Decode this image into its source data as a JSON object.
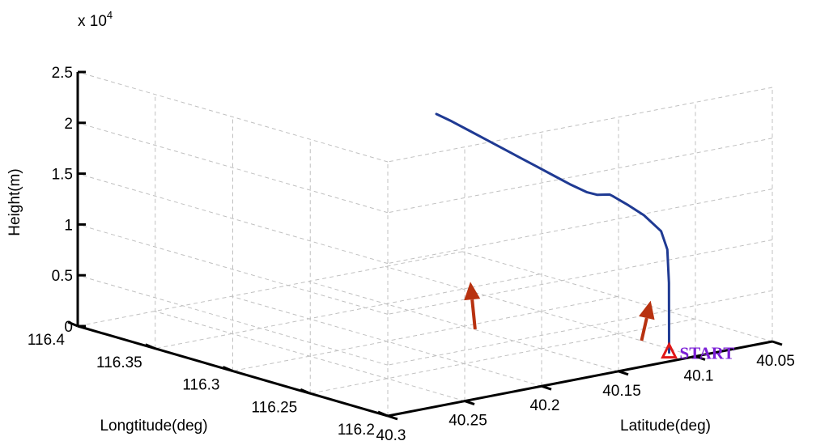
{
  "chart_data": {
    "type": "line",
    "subtype": "3d-trajectory",
    "xlabel": "Longtitude(deg)",
    "ylabel": "Latitude(deg)",
    "zlabel": "Height(m)",
    "z_exponent_label": "x 10",
    "z_exponent_power": "4",
    "xlim": [
      116.2,
      116.4
    ],
    "ylim": [
      40.05,
      40.3
    ],
    "zlim": [
      0,
      25000
    ],
    "x_ticks": [
      {
        "value": 116.2,
        "label": "116.2"
      },
      {
        "value": 116.25,
        "label": "116.25"
      },
      {
        "value": 116.3,
        "label": "116.3"
      },
      {
        "value": 116.35,
        "label": "116.35"
      },
      {
        "value": 116.4,
        "label": "116.4"
      }
    ],
    "y_ticks": [
      {
        "value": 40.05,
        "label": "40.05"
      },
      {
        "value": 40.1,
        "label": "40.1"
      },
      {
        "value": 40.15,
        "label": "40.15"
      },
      {
        "value": 40.2,
        "label": "40.2"
      },
      {
        "value": 40.25,
        "label": "40.25"
      },
      {
        "value": 40.3,
        "label": "40.3"
      }
    ],
    "z_ticks": [
      {
        "value": 0,
        "label": "0"
      },
      {
        "value": 5000,
        "label": "0.5"
      },
      {
        "value": 10000,
        "label": "1"
      },
      {
        "value": 15000,
        "label": "1.5"
      },
      {
        "value": 20000,
        "label": "2"
      },
      {
        "value": 25000,
        "label": "2.5"
      }
    ],
    "grid": true,
    "series": [
      {
        "color": "#1f3a93",
        "points": [
          [
            116.212,
            40.105,
            0
          ],
          [
            116.222,
            40.095,
            2800
          ],
          [
            116.229,
            40.088,
            5600
          ],
          [
            116.236,
            40.082,
            8400
          ],
          [
            116.243,
            40.079,
            9800
          ],
          [
            116.262,
            40.071,
            10300
          ],
          [
            116.28,
            40.063,
            10250
          ],
          [
            116.297,
            40.056,
            10200
          ],
          [
            116.295,
            40.06,
            10550
          ],
          [
            116.293,
            40.07,
            10900
          ],
          [
            116.29,
            40.08,
            11600
          ],
          [
            116.286,
            40.095,
            13000
          ],
          [
            116.282,
            40.11,
            14500
          ],
          [
            116.278,
            40.125,
            16000
          ],
          [
            116.274,
            40.14,
            17500
          ],
          [
            116.27,
            40.155,
            19000
          ],
          [
            116.266,
            40.17,
            20500
          ],
          [
            116.262,
            40.185,
            22000
          ],
          [
            116.258,
            40.2,
            23500
          ],
          [
            116.254,
            40.214,
            24800
          ]
        ]
      }
    ],
    "start_marker": {
      "label": "START",
      "color": "#7b1fd6",
      "marker_color": "#e01818",
      "point": [
        116.212,
        40.105,
        0
      ]
    },
    "arrows": [
      {
        "color": "#b83210",
        "from": [
          116.205,
          40.13,
          2200
        ],
        "to": [
          116.214,
          40.115,
          5300
        ]
      },
      {
        "color": "#b83210",
        "from": [
          116.228,
          40.215,
          4800
        ],
        "to": [
          116.241,
          40.205,
          8600
        ]
      }
    ]
  }
}
